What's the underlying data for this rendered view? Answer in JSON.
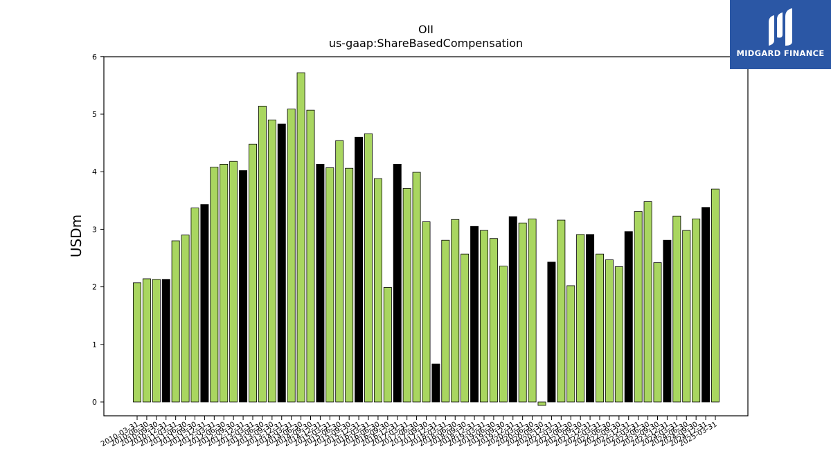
{
  "chart_data": {
    "type": "bar",
    "title": "OII",
    "subtitle": "us-gaap:ShareBasedCompensation",
    "xlabel": "",
    "ylabel": "USDm",
    "ylim": [
      -0.25,
      6.0
    ],
    "yticks": [
      0,
      1,
      2,
      3,
      4,
      5,
      6
    ],
    "colors": {
      "quarter": "#a9d660",
      "annual": "#000000",
      "edge": "#000000"
    },
    "categories": [
      "2010-03-31",
      "2010-06-30",
      "2010-09-30",
      "2010-12-31",
      "2011-03-31",
      "2011-06-30",
      "2011-09-30",
      "2011-12-31",
      "2012-03-31",
      "2012-06-30",
      "2012-09-30",
      "2012-12-31",
      "2013-03-31",
      "2013-06-30",
      "2013-09-30",
      "2013-12-31",
      "2014-03-31",
      "2014-06-30",
      "2014-09-30",
      "2014-12-31",
      "2015-03-31",
      "2015-06-30",
      "2015-09-30",
      "2015-12-31",
      "2016-03-31",
      "2016-06-30",
      "2016-09-30",
      "2016-12-31",
      "2017-03-31",
      "2017-06-30",
      "2017-09-30",
      "2017-12-31",
      "2018-03-31",
      "2018-06-30",
      "2018-09-30",
      "2018-12-31",
      "2019-03-31",
      "2019-06-30",
      "2019-09-30",
      "2019-12-31",
      "2020-03-31",
      "2020-06-30",
      "2020-09-30",
      "2020-12-31",
      "2021-03-31",
      "2021-06-30",
      "2021-09-30",
      "2021-12-31",
      "2022-03-31",
      "2022-06-30",
      "2022-09-30",
      "2022-12-31",
      "2023-03-31",
      "2023-06-30",
      "2023-09-30",
      "2023-12-31",
      "2024-03-31",
      "2024-06-30",
      "2024-09-30",
      "2024-12-31",
      "2025-03-31"
    ],
    "values": [
      2.07,
      2.14,
      2.13,
      2.13,
      2.8,
      2.9,
      3.37,
      3.43,
      4.08,
      4.13,
      4.18,
      4.02,
      4.48,
      5.14,
      4.9,
      4.83,
      5.09,
      5.72,
      5.07,
      4.13,
      4.07,
      4.54,
      4.06,
      4.6,
      4.66,
      3.88,
      1.99,
      4.13,
      3.71,
      3.99,
      3.13,
      0.66,
      2.81,
      3.17,
      2.57,
      3.05,
      2.98,
      2.84,
      2.36,
      3.22,
      3.11,
      3.18,
      -0.06,
      2.43,
      3.16,
      2.02,
      2.91,
      2.91,
      2.57,
      2.47,
      2.35,
      2.96,
      3.31,
      3.48,
      2.42,
      2.81,
      3.23,
      2.98,
      3.18,
      3.38,
      3.7
    ],
    "annual_flags": [
      0,
      0,
      0,
      1,
      0,
      0,
      0,
      1,
      0,
      0,
      0,
      1,
      0,
      0,
      0,
      1,
      0,
      0,
      0,
      1,
      0,
      0,
      0,
      1,
      0,
      0,
      0,
      1,
      0,
      0,
      0,
      1,
      0,
      0,
      0,
      1,
      0,
      0,
      0,
      1,
      0,
      0,
      0,
      1,
      0,
      0,
      0,
      1,
      0,
      0,
      0,
      1,
      0,
      0,
      0,
      1,
      0,
      0,
      0,
      1,
      0
    ]
  },
  "logo": {
    "text": "MIDGARD FINANCE",
    "background": "#2b57a5"
  }
}
